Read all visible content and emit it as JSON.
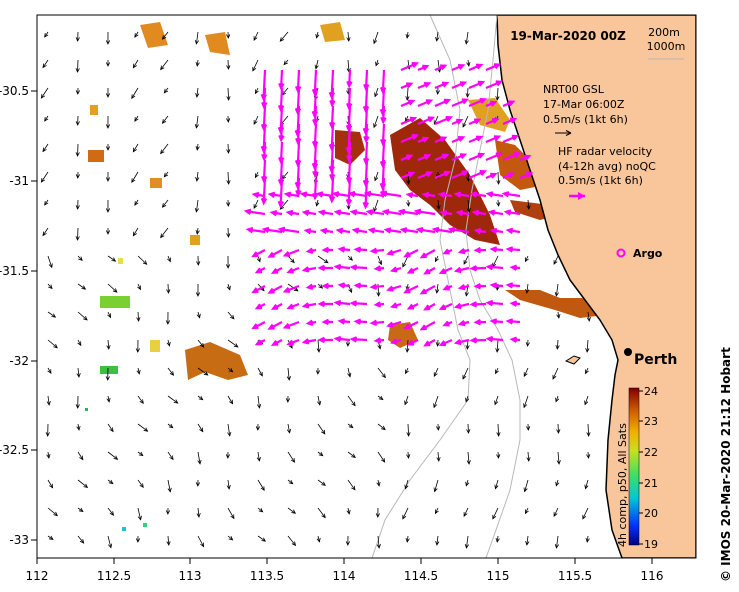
{
  "map": {
    "date_title": "19-Mar-2020 00Z",
    "isobath_labels": [
      "200m",
      "1000m"
    ],
    "x_ticks": [
      "112",
      "112.5",
      "113",
      "113.5",
      "114",
      "114.5",
      "115",
      "115.5",
      "116"
    ],
    "y_ticks": [
      "-30.5",
      "-31",
      "-31.5",
      "-32",
      "-32.5",
      "-33"
    ],
    "model_legend": {
      "line1": "NRT00 GSL",
      "line2": "17-Mar 06:00Z",
      "line3": "0.5m/s (1kt 6h)"
    },
    "radar_legend": {
      "line1": "HF radar velocity",
      "line2": "(4-12h avg) noQC",
      "line3": "0.5m/s (1kt 6h)"
    },
    "argo_label": "Argo",
    "city_label": "Perth",
    "colorbar": {
      "ticks": [
        "24",
        "23",
        "22",
        "21",
        "20",
        "19"
      ],
      "caption": "4h comp, p50, All Sats"
    },
    "credit": "©  IMOS 20-Mar-2020 21:12 Hobart"
  },
  "colors": {
    "land": "#f9c59a",
    "radar_arrow": "#ff00ff",
    "argo": "#ff00ff"
  }
}
